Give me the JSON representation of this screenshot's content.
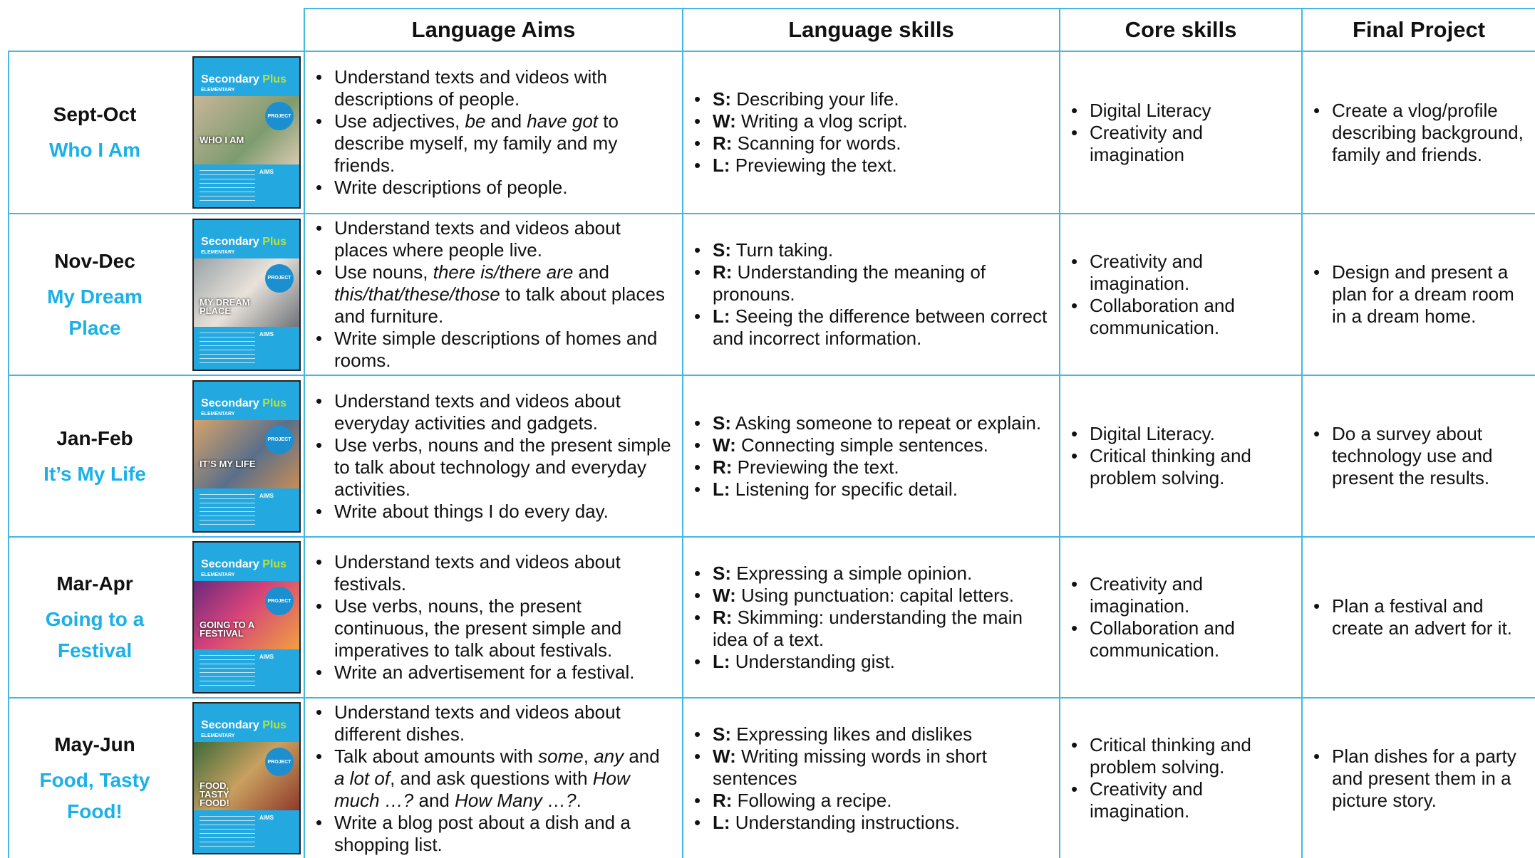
{
  "header": {
    "columns": [
      "Language Aims",
      "Language skills",
      "Core skills",
      "Final Project"
    ]
  },
  "cover": {
    "brand": "Secondary",
    "brand_accent": "Plus",
    "level": "ELEMENTARY",
    "badge": "PROJECT",
    "aims": "AIMS"
  },
  "rows": [
    {
      "period": "Sept-Oct",
      "unit": "Who I Am",
      "cover_title": "WHO I AM",
      "aims": [
        [
          "Understand texts and videos with descriptions of people."
        ],
        [
          "Use adjectives, ",
          {
            "em": "be"
          },
          " and ",
          {
            "em": "have got"
          },
          " to describe myself, my family and my friends."
        ],
        [
          "Write descriptions of people."
        ]
      ],
      "skills": [
        [
          {
            "strong": "S:"
          },
          " Describing your life."
        ],
        [
          {
            "strong": "W:"
          },
          " Writing a vlog script."
        ],
        [
          {
            "strong": "R:"
          },
          " Scanning for words."
        ],
        [
          {
            "strong": "L:"
          },
          " Previewing the text."
        ]
      ],
      "core": [
        [
          "Digital Literacy"
        ],
        [
          "Creativity and imagination"
        ]
      ],
      "project": [
        [
          "Create a vlog/profile describing background, family and friends."
        ]
      ]
    },
    {
      "period": "Nov-Dec",
      "unit": "My Dream Place",
      "cover_title": "MY DREAM PLACE",
      "aims": [
        [
          "Understand texts and videos about places where people live."
        ],
        [
          "Use nouns, ",
          {
            "em": "there is/there are"
          },
          " and ",
          {
            "em": "this/that/these/those"
          },
          " to talk about places and furniture."
        ],
        [
          "Write simple descriptions of homes and rooms."
        ]
      ],
      "skills": [
        [
          {
            "strong": "S:"
          },
          " Turn taking."
        ],
        [
          {
            "strong": "R:"
          },
          " Understanding the meaning of pronouns."
        ],
        [
          {
            "strong": "L:"
          },
          " Seeing the difference between correct and incorrect information."
        ]
      ],
      "core": [
        [
          "Creativity and imagination."
        ],
        [
          "Collaboration and communication."
        ]
      ],
      "project": [
        [
          "Design and present a plan for a dream room in a dream home."
        ]
      ]
    },
    {
      "period": "Jan-Feb",
      "unit": "It’s My Life",
      "cover_title": "IT’S MY LIFE",
      "aims": [
        [
          "Understand texts and videos about everyday activities and gadgets."
        ],
        [
          "Use verbs, nouns and the present simple to talk about technology and everyday activities."
        ],
        [
          "Write about things I do every day."
        ]
      ],
      "skills": [
        [
          {
            "strong": "S:"
          },
          " Asking someone to repeat or explain."
        ],
        [
          {
            "strong": "W:"
          },
          " Connecting simple sentences."
        ],
        [
          {
            "strong": "R:"
          },
          " Previewing the text."
        ],
        [
          {
            "strong": "L:"
          },
          " Listening for specific detail."
        ]
      ],
      "core": [
        [
          "Digital Literacy."
        ],
        [
          "Critical thinking and problem solving."
        ]
      ],
      "project": [
        [
          "Do a survey about technology use and present the results."
        ]
      ]
    },
    {
      "period": "Mar-Apr",
      "unit": "Going to a Festival",
      "cover_title": "GOING TO A FESTIVAL",
      "aims": [
        [
          "Understand texts and videos about festivals."
        ],
        [
          "Use verbs, nouns, the present continuous, the present simple and imperatives to talk about festivals."
        ],
        [
          "Write an advertisement for a festival."
        ]
      ],
      "skills": [
        [
          {
            "strong": "S:"
          },
          " Expressing a simple opinion."
        ],
        [
          {
            "strong": "W:"
          },
          " Using punctuation: capital letters."
        ],
        [
          {
            "strong": "R:"
          },
          " Skimming: understanding the main idea of a text."
        ],
        [
          {
            "strong": "L:"
          },
          " Understanding gist."
        ]
      ],
      "core": [
        [
          "Creativity and imagination."
        ],
        [
          "Collaboration and communication."
        ]
      ],
      "project": [
        [
          "Plan a festival and create an advert for it."
        ]
      ]
    },
    {
      "period": "May-Jun",
      "unit": "Food, Tasty Food!",
      "cover_title": "FOOD, TASTY FOOD!",
      "aims": [
        [
          "Understand texts and videos about different dishes."
        ],
        [
          "Talk about amounts with ",
          {
            "em": "some"
          },
          ", ",
          {
            "em": "any"
          },
          " and ",
          {
            "em": "a lot of"
          },
          ", and ask questions with ",
          {
            "em": "How much …?"
          },
          " and ",
          {
            "em": "How Many …?"
          },
          "."
        ],
        [
          "Write a blog post about a dish and a shopping list."
        ]
      ],
      "skills": [
        [
          {
            "strong": "S:"
          },
          " Expressing likes and dislikes"
        ],
        [
          {
            "strong": "W:"
          },
          " Writing missing words in short sentences"
        ],
        [
          {
            "strong": "R:"
          },
          " Following a recipe."
        ],
        [
          {
            "strong": "L:"
          },
          " Understanding instructions."
        ]
      ],
      "core": [
        [
          "Critical thinking and problem solving."
        ],
        [
          "Creativity and imagination."
        ]
      ],
      "project": [
        [
          "Plan dishes for a party and present them in a picture story."
        ]
      ]
    }
  ]
}
